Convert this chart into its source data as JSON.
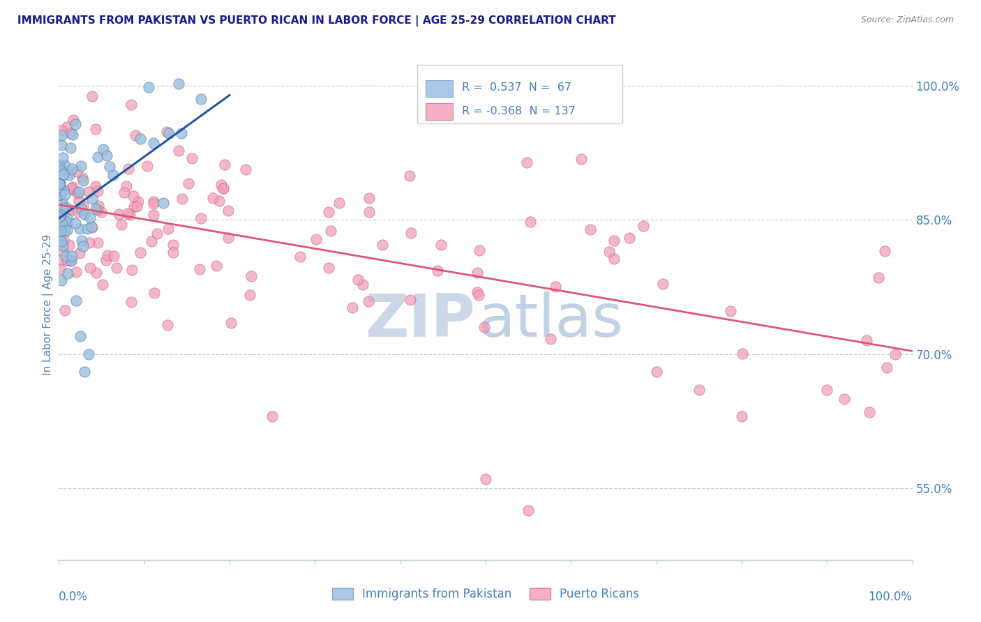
{
  "title": "IMMIGRANTS FROM PAKISTAN VS PUERTO RICAN IN LABOR FORCE | AGE 25-29 CORRELATION CHART",
  "source_text": "Source: ZipAtlas.com",
  "ylabel": "In Labor Force | Age 25-29",
  "right_ytick_labels": [
    "100.0%",
    "85.0%",
    "70.0%",
    "55.0%"
  ],
  "right_ytick_values": [
    1.0,
    0.85,
    0.7,
    0.55
  ],
  "xlim": [
    0.0,
    1.0
  ],
  "ylim": [
    0.47,
    1.04
  ],
  "pakistan_color": "#9abfde",
  "pakistan_edge": "#5580b0",
  "pakistan_line_color": "#2255a0",
  "pr_color": "#f0a0b8",
  "pr_edge": "#d06080",
  "pr_line_color": "#e05575",
  "legend_box_color": "#f5f5f5",
  "legend_border_color": "#cccccc",
  "grid_color": "#c0d0e0",
  "title_color": "#1a1a8c",
  "axis_label_color": "#5080b0",
  "tick_color": "#4080c0",
  "background_color": "#ffffff",
  "watermark_zip_color": "#ccd8e8",
  "watermark_atlas_color": "#b8cce0"
}
